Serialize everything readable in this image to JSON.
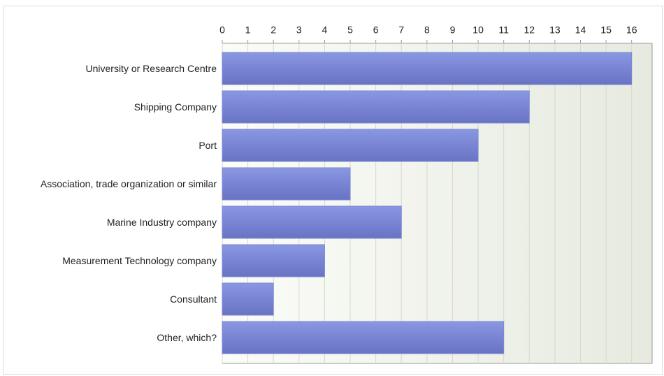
{
  "chart_data": {
    "type": "bar",
    "orientation": "horizontal",
    "categories": [
      "University or Research Centre",
      "Shipping Company",
      "Port",
      "Association, trade organization or similar",
      "Marine Industry company",
      "Measurement Technology company",
      "Consultant",
      "Other, which?"
    ],
    "values": [
      16,
      12,
      10,
      5,
      7,
      4,
      2,
      11
    ],
    "color": "#7b88d6",
    "xlim": [
      0,
      16.8
    ],
    "xticks": [
      0,
      1,
      2,
      3,
      4,
      5,
      6,
      7,
      8,
      9,
      10,
      11,
      12,
      13,
      14,
      15,
      16
    ],
    "grid": true
  }
}
